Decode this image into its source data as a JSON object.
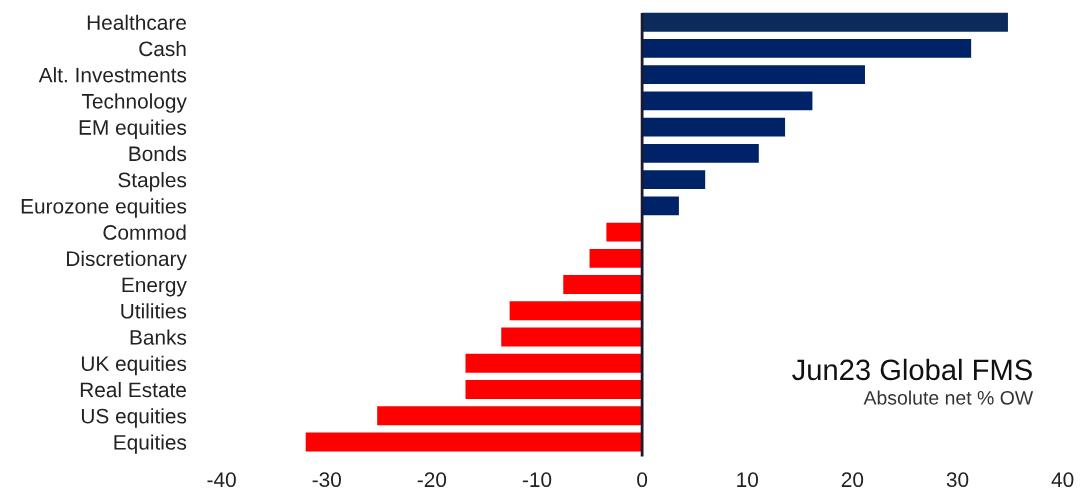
{
  "chart_data": {
    "type": "bar",
    "orientation": "horizontal",
    "title": "Jun23 Global FMS",
    "subtitle": "Absolute net % OW",
    "categories": [
      "Healthcare",
      "Cash",
      "Alt. Investments",
      "Technology",
      "EM equities",
      "Bonds",
      "Staples",
      "Eurozone equities",
      "Commod",
      "Discretionary",
      "Energy",
      "Utilities",
      "Banks",
      "UK equities",
      "Real Estate",
      "US equities",
      "Equities"
    ],
    "values": [
      34.8,
      31.3,
      21.2,
      16.2,
      13.6,
      11.1,
      6,
      3.5,
      -3.4,
      -5,
      -7.5,
      -12.6,
      -13.4,
      -16.8,
      -16.8,
      -25.2,
      -32
    ],
    "colors": [
      "#0c2a5c",
      "#002266",
      "#002266",
      "#002266",
      "#002266",
      "#002266",
      "#002266",
      "#002266",
      "#ff0000",
      "#ff0000",
      "#ff0000",
      "#ff0000",
      "#ff0000",
      "#ff0000",
      "#ff0000",
      "#ff0000",
      "#ff0000"
    ],
    "xlim": [
      -40,
      40
    ],
    "xticks": [
      -40,
      -30,
      -20,
      -10,
      0,
      10,
      20,
      30,
      40
    ],
    "legend": false
  }
}
